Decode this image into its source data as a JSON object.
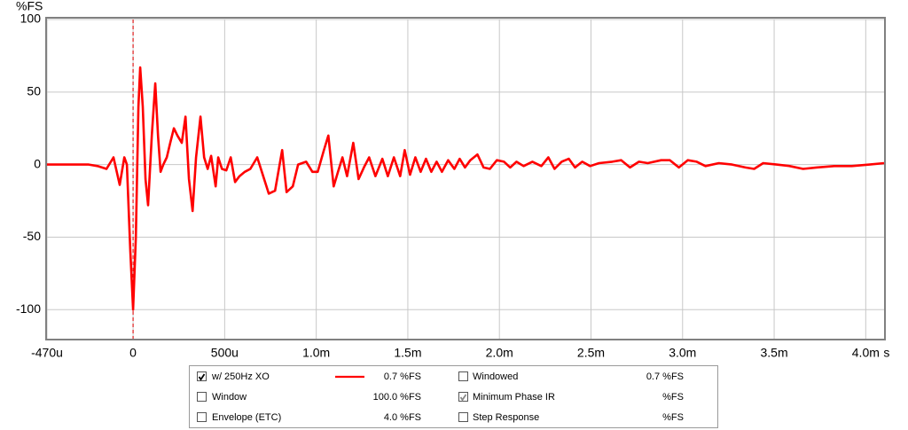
{
  "chart_data": {
    "type": "line",
    "y_label": "%FS",
    "x_unit": "s",
    "xlim": [
      -0.47,
      4.1
    ],
    "ylim": [
      -120,
      100
    ],
    "xticks": [
      {
        "value": -0.47,
        "label": "-470u"
      },
      0,
      {
        "value": 0.5,
        "label": "500u"
      },
      {
        "value": 1,
        "label": "1.0m"
      },
      {
        "value": 1.5,
        "label": "1.5m"
      },
      {
        "value": 2,
        "label": "2.0m"
      },
      {
        "value": 2.5,
        "label": "2.5m"
      },
      {
        "value": 3,
        "label": "3.0m"
      },
      {
        "value": 3.5,
        "label": "3.5m"
      },
      {
        "value": 4,
        "label": "4.0m"
      }
    ],
    "yticks": [
      -100,
      -50,
      0,
      50,
      100
    ],
    "grid": true,
    "marker_x": 0,
    "marker_color": "#e02020",
    "series": [
      {
        "name": "w/ 250Hz XO",
        "color": "#ff0000",
        "x": [
          -0.47,
          -0.339,
          -0.242,
          -0.194,
          -0.145,
          -0.107,
          -0.073,
          -0.048,
          -0.034,
          -0.015,
          0,
          0.015,
          0.029,
          0.039,
          0.053,
          0.068,
          0.082,
          0.102,
          0.121,
          0.136,
          0.15,
          0.165,
          0.184,
          0.203,
          0.223,
          0.242,
          0.266,
          0.286,
          0.305,
          0.325,
          0.344,
          0.368,
          0.388,
          0.407,
          0.426,
          0.451,
          0.465,
          0.485,
          0.509,
          0.533,
          0.557,
          0.581,
          0.61,
          0.64,
          0.678,
          0.703,
          0.741,
          0.775,
          0.814,
          0.838,
          0.872,
          0.901,
          0.945,
          0.979,
          1.008,
          1.042,
          1.066,
          1.095,
          1.119,
          1.143,
          1.168,
          1.202,
          1.231,
          1.26,
          1.289,
          1.323,
          1.361,
          1.391,
          1.424,
          1.458,
          1.483,
          1.512,
          1.541,
          1.57,
          1.599,
          1.628,
          1.657,
          1.686,
          1.72,
          1.754,
          1.783,
          1.812,
          1.841,
          1.88,
          1.914,
          1.948,
          1.986,
          2.025,
          2.059,
          2.093,
          2.132,
          2.18,
          2.229,
          2.267,
          2.301,
          2.34,
          2.379,
          2.413,
          2.452,
          2.495,
          2.544,
          2.616,
          2.665,
          2.713,
          2.762,
          2.81,
          2.883,
          2.931,
          2.98,
          3.028,
          3.077,
          3.125,
          3.198,
          3.27,
          3.343,
          3.391,
          3.44,
          3.513,
          3.585,
          3.658,
          3.731,
          3.828,
          3.924,
          4.021,
          4.1
        ],
        "values": [
          0,
          0,
          0,
          -1,
          -3,
          5,
          -14,
          5,
          0,
          -60,
          -100,
          -50,
          40,
          67,
          40,
          -10,
          -28,
          20,
          56,
          20,
          -5,
          0,
          5,
          15,
          25,
          20,
          15,
          33,
          -10,
          -32,
          5,
          33,
          5,
          -3,
          6,
          -15,
          5,
          -3,
          -4,
          5,
          -12,
          -8,
          -5,
          -3,
          5,
          -5,
          -20,
          -18,
          10,
          -19,
          -15,
          0,
          2,
          -5,
          -5,
          10,
          20,
          -15,
          -5,
          5,
          -8,
          15,
          -10,
          -2,
          5,
          -8,
          4,
          -8,
          5,
          -8,
          10,
          -7,
          5,
          -5,
          4,
          -5,
          2,
          -5,
          3,
          -3,
          4,
          -2,
          3,
          7,
          -2,
          -3,
          3,
          2,
          -2,
          2,
          -1,
          2,
          -1,
          5,
          -3,
          2,
          4,
          -2,
          2,
          -1,
          1,
          2,
          3,
          -2,
          2,
          1,
          3,
          3,
          -2,
          3,
          2,
          -1,
          1,
          0,
          -2,
          -3,
          1,
          0,
          -1,
          -3,
          -2,
          -1,
          -1,
          0,
          1
        ]
      }
    ],
    "legend": [
      {
        "series": 0,
        "readout": "0.7 %FS",
        "color": "#ff0000",
        "checked": true,
        "line": true
      },
      {
        "label": "Windowed",
        "readout": "0.7 %FS",
        "color": "#d00000",
        "checked": false
      },
      {
        "label": "Window",
        "readout": "100.0 %FS",
        "color": "#0000cc",
        "checked": false
      },
      {
        "label": "Minimum Phase IR",
        "readout": "%FS",
        "color": "#888888",
        "checked": true
      },
      {
        "label": "Envelope (ETC)",
        "readout": "4.0 %FS",
        "color": "#a00000",
        "checked": false
      },
      {
        "label": "Step Response",
        "readout": "%FS",
        "color": "#a00000",
        "checked": false
      }
    ]
  }
}
